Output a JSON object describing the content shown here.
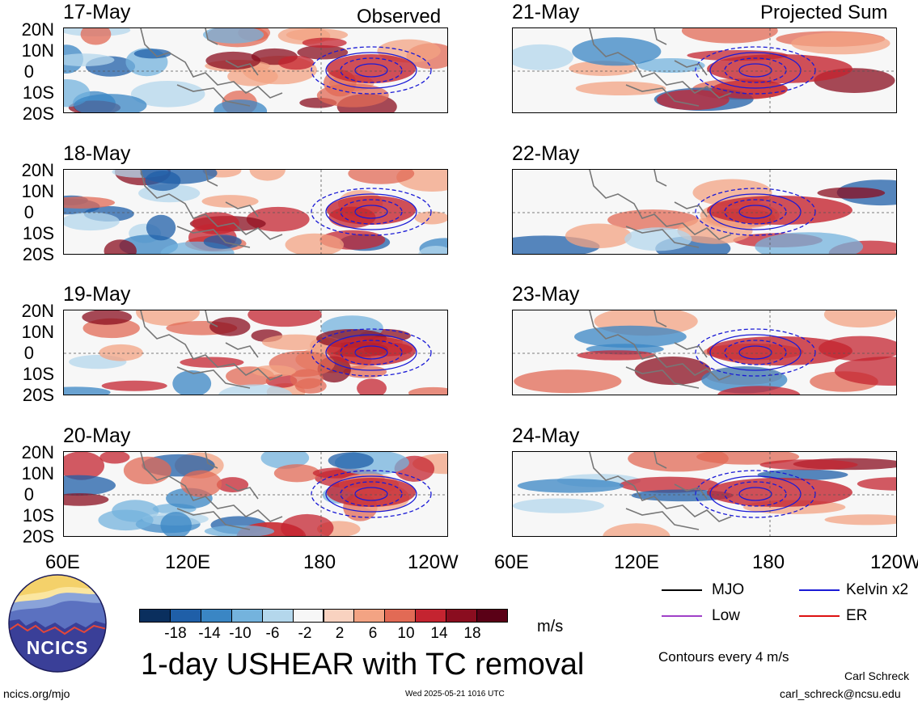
{
  "panel_titles": {
    "left": "Observed",
    "right": "Projected Sum"
  },
  "dates": [
    "17-May",
    "18-May",
    "19-May",
    "20-May",
    "21-May",
    "22-May",
    "23-May",
    "24-May"
  ],
  "lat_labels": [
    "20N",
    "10N",
    "0",
    "10S",
    "20S"
  ],
  "lon_labels": [
    "60E",
    "120E",
    "180",
    "120W"
  ],
  "colorbar": {
    "labels": [
      "-18",
      "-14",
      "-10",
      "-6",
      "-2",
      "2",
      "6",
      "10",
      "14",
      "18"
    ],
    "colors": [
      "#0a2f5e",
      "#1f5fa8",
      "#3a86c4",
      "#74b3dd",
      "#b4d7ec",
      "#f7f7f7",
      "#f9d2c0",
      "#f3a383",
      "#e26a55",
      "#c42430",
      "#8a0d1f",
      "#5a0016"
    ],
    "units": "m/s"
  },
  "main_title": "1-day USHEAR with TC removal",
  "legend": {
    "mjo": {
      "label": "MJO",
      "color": "#000000"
    },
    "kelvin": {
      "label": "Kelvin x2",
      "color": "#1a1ad6"
    },
    "low": {
      "label": "Low",
      "color": "#a040c8"
    },
    "er": {
      "label": "ER",
      "color": "#dd1111"
    },
    "contours_note": "Contours every 4 m/s"
  },
  "logo": {
    "text": "NCICS"
  },
  "footer": {
    "url": "ncics.org/mjo",
    "timestamp": "Wed 2025-05-21 1016 UTC",
    "author": "Carl Schreck",
    "email": "carl_schreck@ncsu.edu"
  }
}
